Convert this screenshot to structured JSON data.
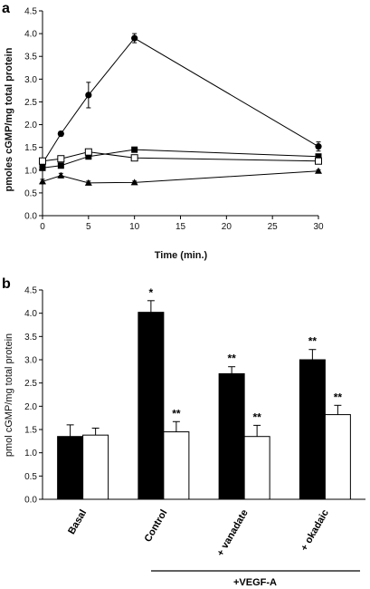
{
  "chart_data": [
    {
      "panel_label": "a",
      "type": "line",
      "xlabel": "Time (min.)",
      "ylabel": "pmoles cGMP/mg total protein",
      "xlim": [
        0,
        30
      ],
      "ylim": [
        0,
        4.5
      ],
      "xticks": [
        "0",
        "5",
        "10",
        "15",
        "20",
        "25",
        "30"
      ],
      "yticks": [
        "0.0",
        "0.5",
        "1.0",
        "1.5",
        "2.0",
        "2.5",
        "3.0",
        "3.5",
        "4.0",
        "4.5"
      ],
      "grid": false,
      "series": [
        {
          "marker": "circle-filled",
          "x": [
            0,
            2,
            5,
            10,
            30
          ],
          "y": [
            1.15,
            1.8,
            2.65,
            3.9,
            1.52
          ],
          "err": [
            0.03,
            0.05,
            0.28,
            0.1,
            0.1
          ]
        },
        {
          "marker": "square-filled",
          "x": [
            0,
            2,
            5,
            10,
            30
          ],
          "y": [
            1.05,
            1.1,
            1.3,
            1.45,
            1.3
          ],
          "err": [
            0,
            0,
            0,
            0,
            0
          ]
        },
        {
          "marker": "square-open",
          "x": [
            0,
            2,
            5,
            10,
            30
          ],
          "y": [
            1.2,
            1.25,
            1.4,
            1.27,
            1.2
          ],
          "err": [
            0,
            0,
            0,
            0,
            0
          ]
        },
        {
          "marker": "triangle-filled",
          "x": [
            0,
            2,
            5,
            10,
            30
          ],
          "y": [
            0.75,
            0.88,
            0.72,
            0.73,
            0.98
          ],
          "err": [
            0.05,
            0.05,
            0.04,
            0.03,
            0.03
          ]
        }
      ]
    },
    {
      "panel_label": "b",
      "type": "bar",
      "ylabel": "pmol cGMP/mg total protein",
      "ylim": [
        0,
        4.5
      ],
      "yticks": [
        "0.0",
        "0.5",
        "1.0",
        "1.5",
        "2.0",
        "2.5",
        "3.0",
        "3.5",
        "4.0",
        "4.5"
      ],
      "categories": [
        "Basal",
        "Control",
        "+ vanadate",
        "+ okadaic"
      ],
      "group_label": "+VEGF-A",
      "series": [
        {
          "color": "#000000",
          "values": [
            1.35,
            4.02,
            2.7,
            3.0
          ],
          "err": [
            0.25,
            0.25,
            0.15,
            0.22
          ],
          "annotations": [
            "",
            "*",
            "**",
            "**"
          ]
        },
        {
          "color": "#ffffff",
          "values": [
            1.38,
            1.45,
            1.35,
            1.82
          ],
          "err": [
            0.15,
            0.22,
            0.24,
            0.2
          ],
          "annotations": [
            "",
            "**",
            "**",
            "**"
          ]
        }
      ]
    }
  ]
}
